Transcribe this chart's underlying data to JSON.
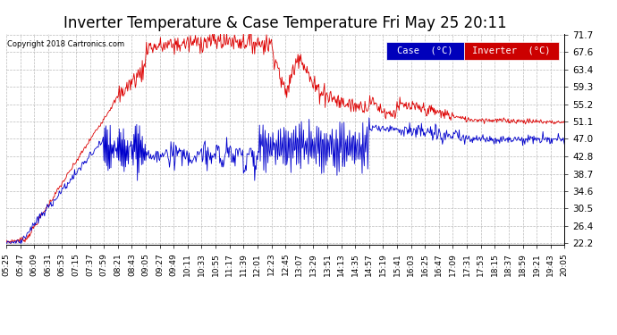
{
  "title": "Inverter Temperature & Case Temperature Fri May 25 20:11",
  "copyright": "Copyright 2018 Cartronics.com",
  "legend_case": "Case  (°C)",
  "legend_inverter": "Inverter  (°C)",
  "case_color": "#dd0000",
  "inverter_color": "#0000cc",
  "case_legend_bg": "#0000cc",
  "inverter_legend_bg": "#dd0000",
  "ylim_min": 22.2,
  "ylim_max": 71.7,
  "yticks": [
    22.2,
    26.4,
    30.5,
    34.6,
    38.7,
    42.8,
    47.0,
    51.1,
    55.2,
    59.3,
    63.4,
    67.6,
    71.7
  ],
  "background_color": "#ffffff",
  "grid_color": "#bbbbbb",
  "title_fontsize": 12,
  "axis_fontsize": 7.5
}
